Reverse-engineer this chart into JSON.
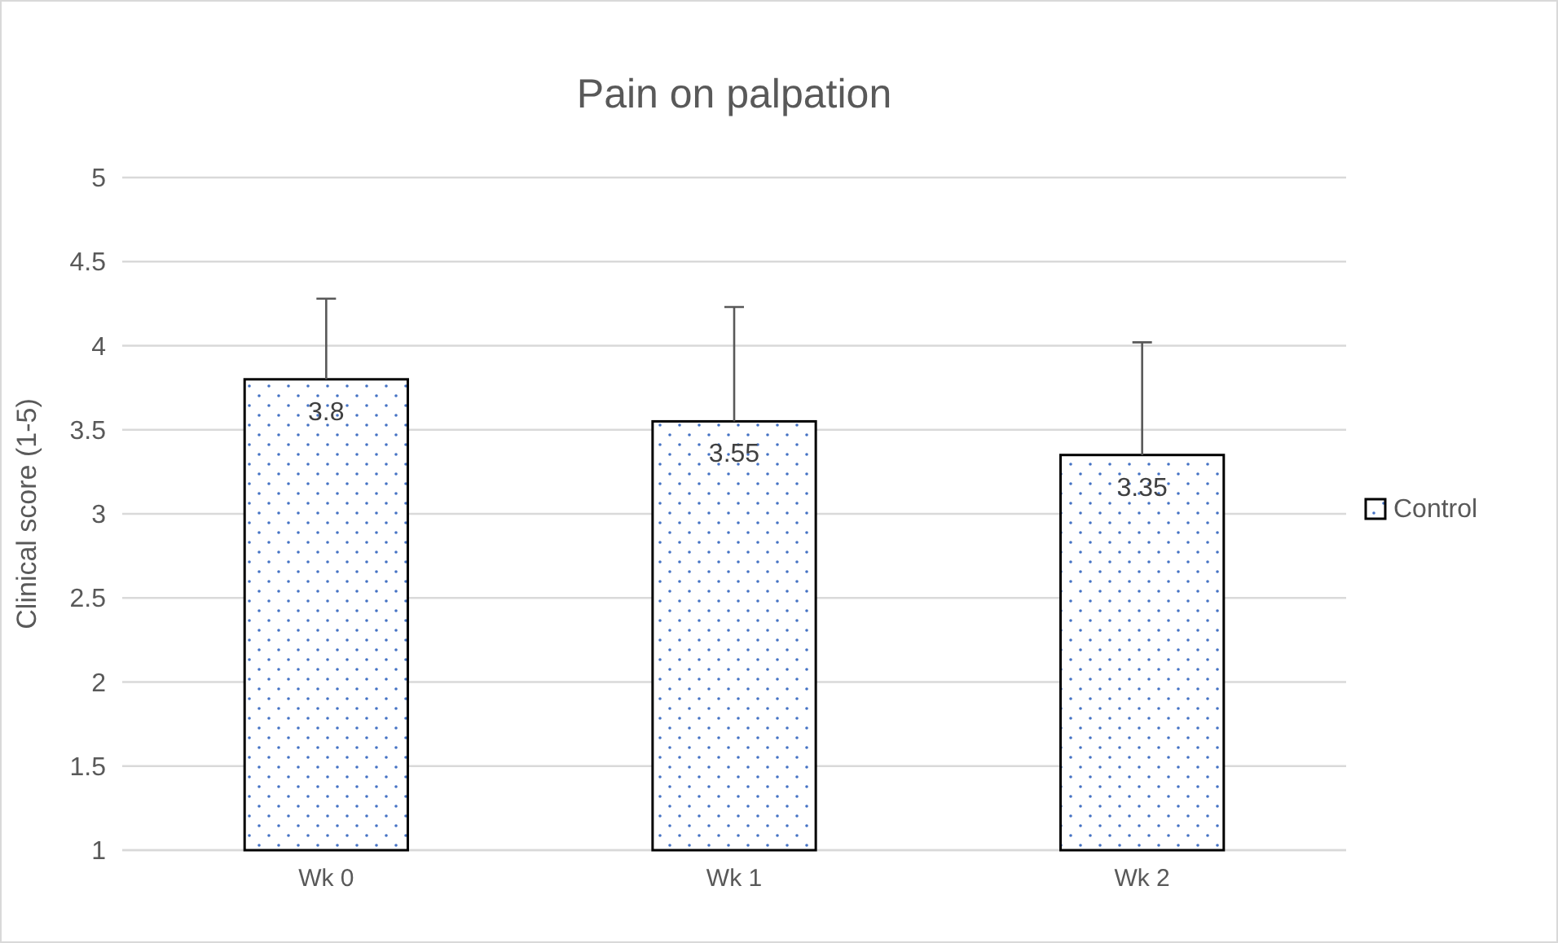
{
  "chart_data": {
    "type": "bar",
    "title": "Pain on palpation",
    "ylabel": "Clinical score (1-5)",
    "categories": [
      "Wk 0",
      "Wk 1",
      "Wk 2"
    ],
    "series": [
      {
        "name": "Control",
        "color": "#000000",
        "values": [
          3.8,
          3.55,
          3.35
        ],
        "errors": [
          [
            3.8,
            4.28
          ],
          [
            3.55,
            4.23
          ],
          [
            3.35,
            4.02
          ]
        ]
      }
    ],
    "ylim": [
      1,
      5
    ],
    "yticks": [
      1,
      1.5,
      2,
      2.5,
      3,
      3.5,
      4,
      4.5,
      5
    ],
    "grid": "y",
    "legend": "right",
    "data_labels": true
  }
}
